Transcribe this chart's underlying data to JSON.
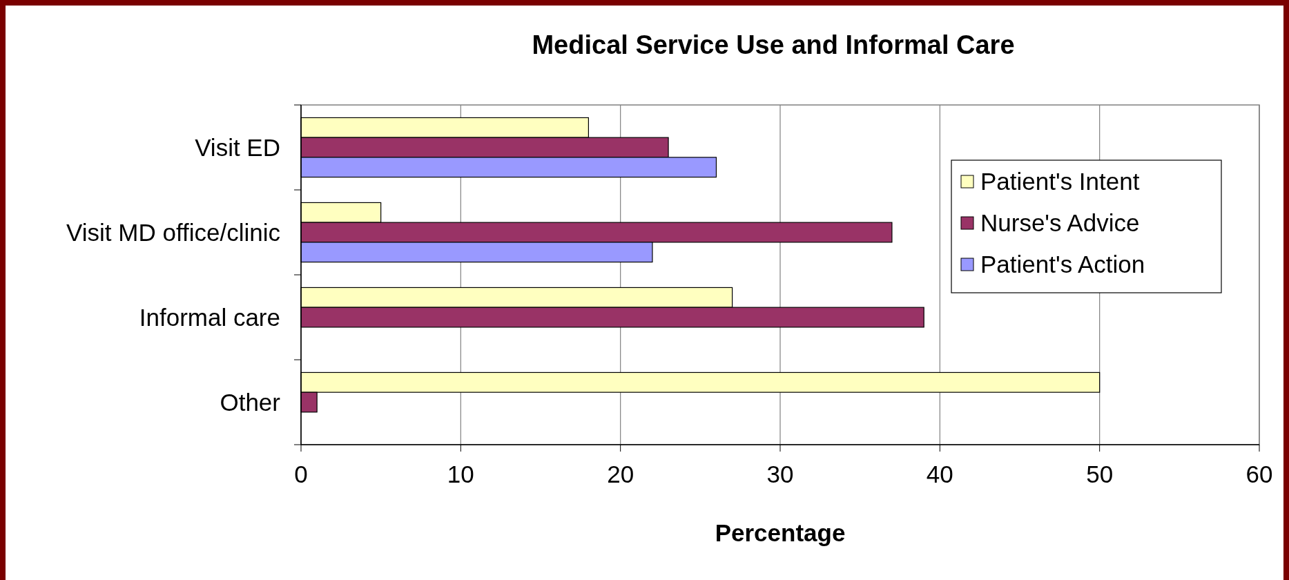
{
  "chart_data": {
    "type": "bar",
    "orientation": "horizontal",
    "title": "Medical Service Use and Informal Care",
    "xlabel": "Percentage",
    "categories": [
      "Visit ED",
      "Visit MD office/clinic",
      "Informal care",
      "Other"
    ],
    "series": [
      {
        "name": "Patient's Intent",
        "color": "#ffffc0",
        "values": [
          18,
          5,
          27,
          50
        ]
      },
      {
        "name": "Nurse's Advice",
        "color": "#993366",
        "values": [
          23,
          37,
          39,
          1
        ]
      },
      {
        "name": "Patient's Action",
        "color": "#9999ff",
        "values": [
          26,
          22,
          null,
          null
        ]
      }
    ],
    "xlim": [
      0,
      60
    ],
    "xticks": [
      0,
      10,
      20,
      30,
      40,
      50,
      60
    ],
    "grid": "x",
    "legend": "top right"
  }
}
